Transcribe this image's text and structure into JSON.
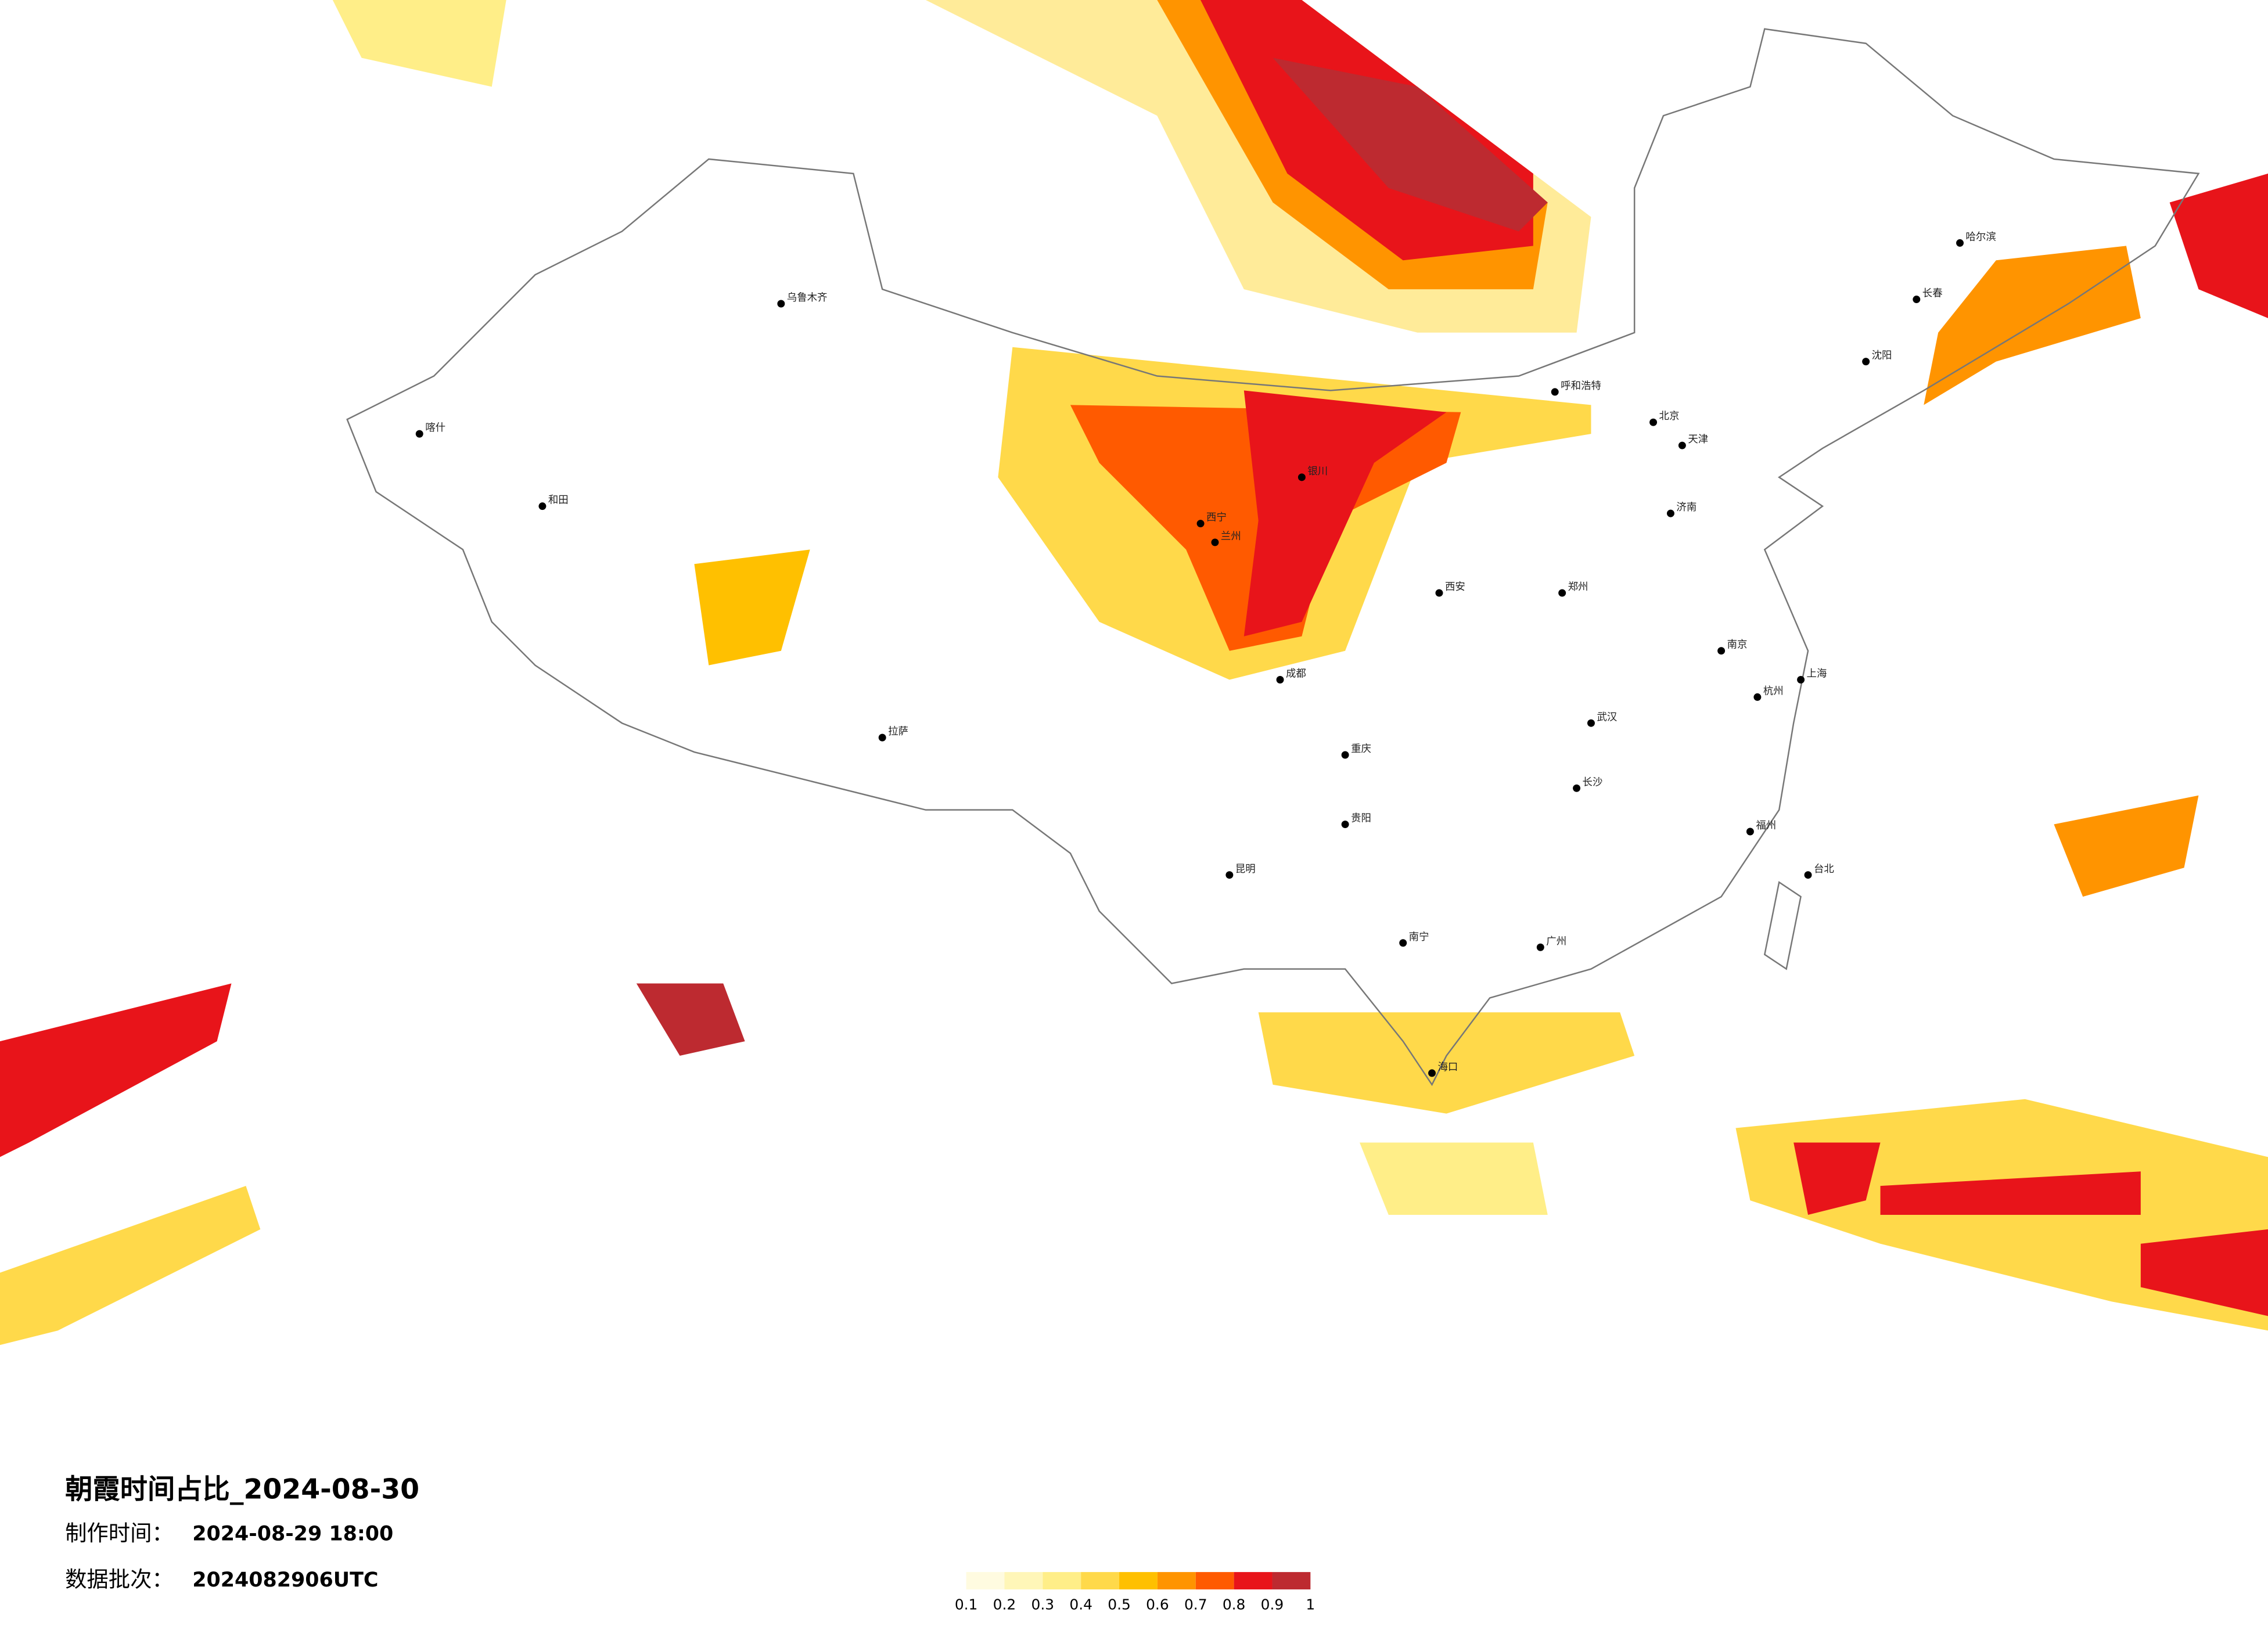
{
  "title": "朝霞时间占比_2024-08-30",
  "made_label": "制作时间：",
  "made_time": "2024-08-29 18:00",
  "batch_label": "数据批次：",
  "batch": "2024082906UTC",
  "colorbar": {
    "colors": [
      "#fffbe0",
      "#fff6b8",
      "#ffee88",
      "#ffd94a",
      "#ffc000",
      "#ff9400",
      "#ff5a00",
      "#e8141a",
      "#bd2a30"
    ],
    "ticks": [
      0.1,
      0.2,
      0.3,
      0.4,
      0.5,
      0.6,
      0.7,
      0.8,
      0.9,
      1
    ]
  },
  "cities": [
    "北京",
    "天津",
    "上海",
    "广州",
    "武汉",
    "成都",
    "重庆",
    "西安",
    "哈尔滨",
    "长春",
    "沈阳",
    "呼和浩特",
    "乌鲁木齐",
    "拉萨",
    "昆明",
    "南宁",
    "福州",
    "郑州",
    "济南",
    "南京",
    "杭州",
    "海口",
    "兰州",
    "银川",
    "西宁",
    "和田",
    "喀什",
    "台北",
    "长沙",
    "贵阳"
  ]
}
